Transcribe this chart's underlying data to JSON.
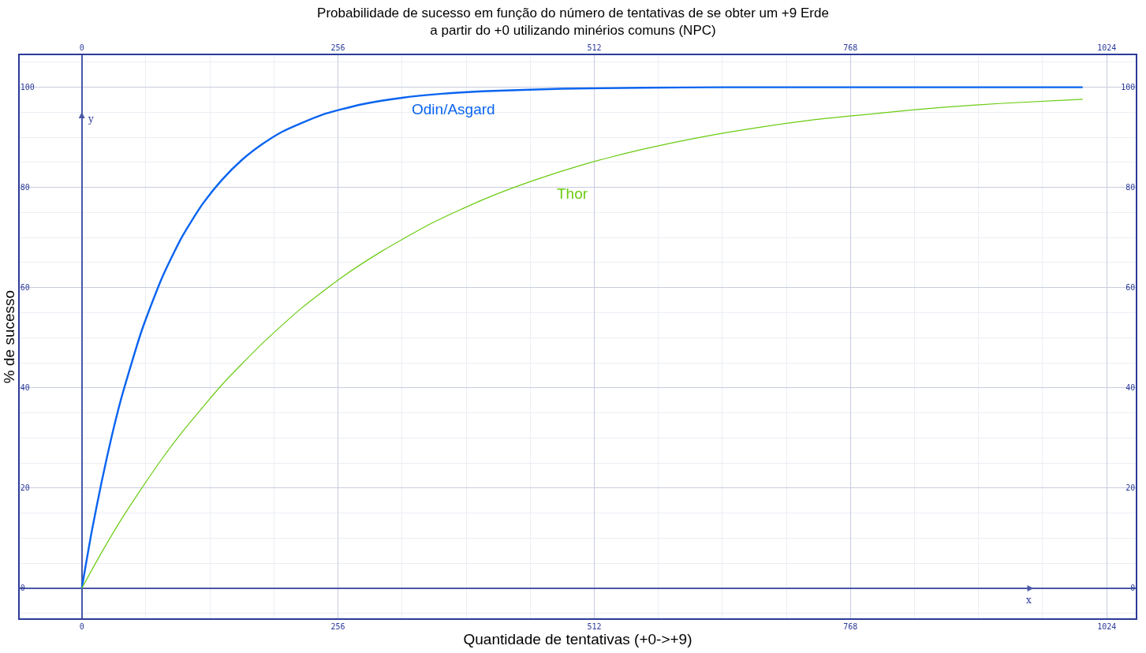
{
  "chart_data": {
    "type": "line",
    "title": "Probabilidade de sucesso em função do número de tentativas de se obter um +9 Erde\na partir do +0 utilizando minérios comuns (NPC)",
    "xlabel": "Quantidade de tentativas (+0->+9)",
    "ylabel": "% de sucesso",
    "annotations": [
      "y",
      "x"
    ],
    "series": [
      {
        "name": "Odin/Asgard",
        "color": "#0a64f0",
        "x": [
          0,
          10,
          20,
          30,
          40,
          60,
          80,
          100,
          120,
          140,
          160,
          180,
          200,
          240,
          280,
          320,
          360,
          400,
          480,
          560,
          640,
          800,
          1000
        ],
        "values": [
          0,
          11.4,
          21.4,
          30.4,
          38.3,
          51.5,
          61.9,
          70.1,
          76.5,
          81.5,
          85.5,
          88.6,
          91.1,
          94.5,
          96.6,
          97.9,
          98.7,
          99.2,
          99.7,
          99.9,
          100,
          100,
          100
        ]
      },
      {
        "name": "Thor",
        "color": "#6acb10",
        "x": [
          0,
          20,
          40,
          60,
          80,
          100,
          140,
          180,
          220,
          260,
          300,
          350,
          400,
          450,
          500,
          560,
          620,
          680,
          740,
          800,
          860,
          920,
          1000
        ],
        "values": [
          0,
          7.2,
          13.9,
          20.0,
          25.8,
          31.1,
          40.6,
          48.8,
          56.0,
          62.1,
          67.3,
          72.9,
          77.5,
          81.3,
          84.5,
          87.6,
          90.1,
          92.1,
          93.7,
          94.9,
          96.0,
          96.8,
          97.6
        ]
      }
    ],
    "xlim": [
      -62,
      1053
    ],
    "xticks": [
      0,
      256,
      512,
      768,
      1024
    ],
    "x2lim": [
      -62,
      1053
    ],
    "x2ticks": [
      0,
      256,
      512,
      768,
      1024
    ],
    "ylim": [
      -6,
      106.4
    ],
    "yticks": [
      0,
      20,
      40,
      60,
      80,
      100
    ],
    "y2lim": [
      -6,
      106.4
    ],
    "y2ticks": [
      0,
      20,
      40,
      60,
      80,
      100
    ],
    "grid": true,
    "legend": false,
    "marker": "none",
    "line_style": "solid"
  }
}
